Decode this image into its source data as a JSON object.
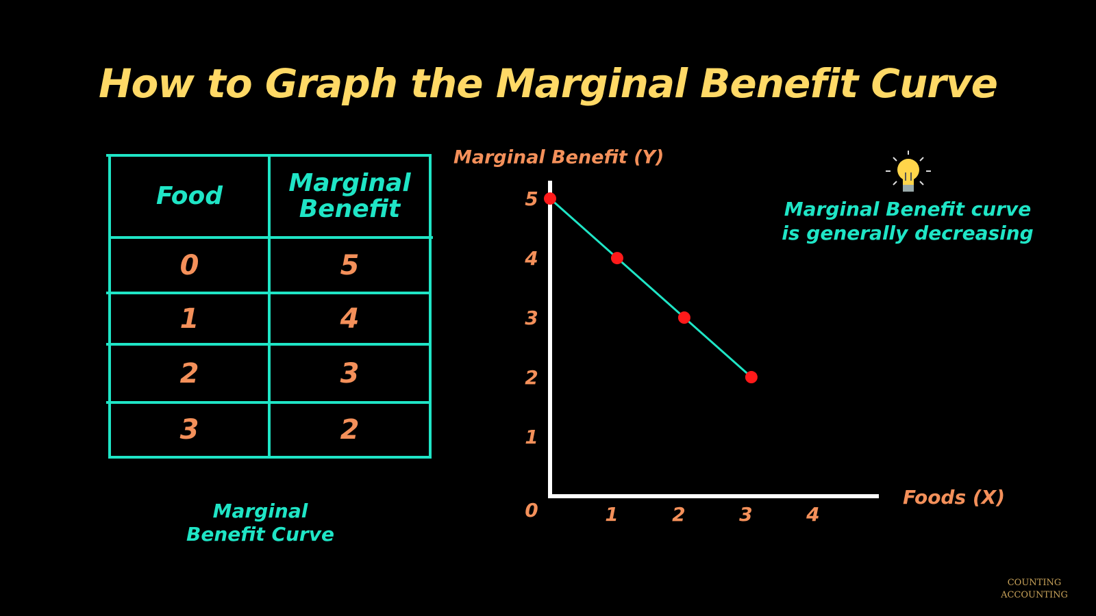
{
  "title": "How to Graph the Marginal Benefit Curve",
  "table": {
    "header": [
      "Food",
      "Marginal Benefit"
    ],
    "rows": [
      [
        "0",
        "5"
      ],
      [
        "1",
        "4"
      ],
      [
        "2",
        "3"
      ],
      [
        "3",
        "2"
      ]
    ]
  },
  "caption": "Marginal Benefit Curve",
  "note": "Marginal Benefit curve is generally decreasing",
  "logo": "COUNTING ACCOUNTING",
  "chart_data": {
    "type": "line",
    "y_label": "Marginal Benefit (Y)",
    "x_label": "Foods (X)",
    "x": [
      0,
      1,
      2,
      3
    ],
    "values": [
      5,
      4,
      3,
      2
    ],
    "line_color": "#1fe5c6",
    "marker_color": "#ff1a1a",
    "xlim": [
      0,
      4.9
    ],
    "ylim": [
      0,
      5.3
    ],
    "xticks": [
      1,
      2,
      3,
      4
    ],
    "yticks": [
      0,
      1,
      2,
      3,
      4,
      5
    ]
  }
}
